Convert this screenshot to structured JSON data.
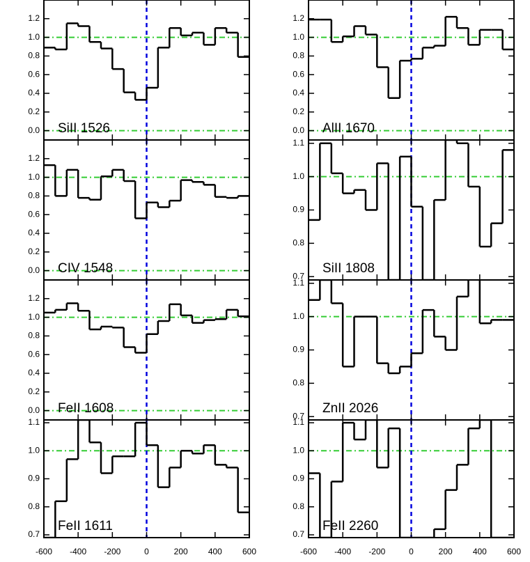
{
  "chart_data": [
    {
      "type": "step",
      "label": "SiII 1526",
      "color": "#000000",
      "xlim": [
        -600,
        600
      ],
      "ylim": [
        -0.1,
        1.4
      ],
      "yticks": [
        {
          "value": 0,
          "label": "0.0"
        },
        0.2,
        0.4,
        0.6,
        0.8,
        {
          "value": 1,
          "label": "1.0"
        },
        1.2
      ],
      "x": [
        -567,
        -500,
        -433,
        -367,
        -300,
        -233,
        -167,
        -100,
        -33,
        33,
        100,
        167,
        233,
        300,
        367,
        433,
        500,
        567
      ],
      "values": [
        0.89,
        0.87,
        1.15,
        1.12,
        0.95,
        0.88,
        0.66,
        0.41,
        0.33,
        0.46,
        0.89,
        1.1,
        1.02,
        1.05,
        0.92,
        1.1,
        1.05,
        0.79
      ],
      "hlines": [
        0,
        1
      ],
      "hline_color": "#33cc33",
      "vlines": [
        0
      ],
      "vline_color": "#0000dd"
    },
    {
      "type": "step",
      "label": "AlII 1670",
      "color": "#000000",
      "xlim": [
        -600,
        600
      ],
      "ylim": [
        -0.1,
        1.4
      ],
      "yticks": [
        {
          "value": 0,
          "label": "0.0"
        },
        0.2,
        0.4,
        0.6,
        0.8,
        {
          "value": 1,
          "label": "1.0"
        },
        1.2
      ],
      "x": [
        -567,
        -500,
        -433,
        -367,
        -300,
        -233,
        -167,
        -100,
        -33,
        33,
        100,
        167,
        233,
        300,
        367,
        433,
        500,
        567
      ],
      "values": [
        1.19,
        1.19,
        0.95,
        1.01,
        1.12,
        1.03,
        0.68,
        0.35,
        0.75,
        0.77,
        0.89,
        0.91,
        1.22,
        1.1,
        0.92,
        1.08,
        1.08,
        0.87
      ],
      "hlines": [
        0,
        1
      ],
      "hline_color": "#33cc33",
      "vlines": [
        0
      ],
      "vline_color": "#0000dd"
    },
    {
      "type": "step",
      "label": "CIV 1548",
      "color": "#000000",
      "xlim": [
        -600,
        600
      ],
      "ylim": [
        -0.1,
        1.4
      ],
      "yticks": [
        {
          "value": 0,
          "label": "0.0"
        },
        0.2,
        0.4,
        0.6,
        0.8,
        {
          "value": 1,
          "label": "1.0"
        },
        1.2
      ],
      "x": [
        -567,
        -500,
        -433,
        -367,
        -300,
        -233,
        -167,
        -100,
        -33,
        33,
        100,
        167,
        233,
        300,
        367,
        433,
        500,
        567
      ],
      "values": [
        1.13,
        0.8,
        1.08,
        0.78,
        0.76,
        1.01,
        1.08,
        0.96,
        0.56,
        0.73,
        0.68,
        0.75,
        0.97,
        0.95,
        0.92,
        0.79,
        0.78,
        0.8
      ],
      "hlines": [
        0,
        1
      ],
      "hline_color": "#33cc33",
      "vlines": [
        0
      ],
      "vline_color": "#0000dd"
    },
    {
      "type": "step",
      "label": "SiII 1808",
      "color": "#000000",
      "xlim": [
        -600,
        600
      ],
      "ylim": [
        0.69,
        1.11
      ],
      "yticks": [
        0.7,
        0.8,
        0.9,
        {
          "value": 1,
          "label": "1.0"
        },
        1.1
      ],
      "x": [
        -567,
        -500,
        -433,
        -367,
        -300,
        -233,
        -167,
        -100,
        -33,
        33,
        100,
        167,
        233,
        300,
        367,
        433,
        500,
        567
      ],
      "values": [
        0.87,
        1.1,
        1.01,
        0.95,
        0.96,
        0.9,
        1.04,
        0.69,
        1.06,
        0.91,
        0.69,
        0.93,
        1.11,
        1.1,
        0.97,
        0.79,
        0.86,
        1.08
      ],
      "hlines": [
        1
      ],
      "hline_color": "#33cc33",
      "vlines": [
        0
      ],
      "vline_color": "#0000dd"
    },
    {
      "type": "step",
      "label": "FeII 1608",
      "color": "#000000",
      "xlim": [
        -600,
        600
      ],
      "ylim": [
        -0.1,
        1.4
      ],
      "yticks": [
        {
          "value": 0,
          "label": "0.0"
        },
        0.2,
        0.4,
        0.6,
        0.8,
        {
          "value": 1,
          "label": "1.0"
        },
        1.2
      ],
      "x": [
        -567,
        -500,
        -433,
        -367,
        -300,
        -233,
        -167,
        -100,
        -33,
        33,
        100,
        167,
        233,
        300,
        367,
        433,
        500,
        567
      ],
      "values": [
        1.05,
        1.08,
        1.15,
        1.07,
        0.87,
        0.9,
        0.89,
        0.68,
        0.62,
        0.82,
        0.96,
        1.14,
        1.02,
        0.94,
        0.97,
        0.98,
        1.08,
        1.01
      ],
      "hlines": [
        0,
        1
      ],
      "hline_color": "#33cc33",
      "vlines": [
        0
      ],
      "vline_color": "#0000dd"
    },
    {
      "type": "step",
      "label": "ZnII 2026",
      "color": "#000000",
      "xlim": [
        -600,
        600
      ],
      "ylim": [
        0.69,
        1.11
      ],
      "yticks": [
        0.7,
        0.8,
        0.9,
        {
          "value": 1,
          "label": "1.0"
        },
        1.1
      ],
      "x": [
        -567,
        -500,
        -433,
        -367,
        -300,
        -233,
        -167,
        -100,
        -33,
        33,
        100,
        167,
        233,
        300,
        367,
        433,
        500,
        567
      ],
      "values": [
        1.05,
        1.11,
        1.04,
        0.85,
        1.0,
        1.0,
        0.86,
        0.83,
        0.85,
        0.89,
        1.02,
        0.94,
        0.9,
        1.06,
        1.12,
        0.98,
        0.99,
        0.99
      ],
      "hlines": [
        1
      ],
      "hline_color": "#33cc33",
      "vlines": [
        0
      ],
      "vline_color": "#0000dd"
    },
    {
      "type": "step",
      "label": "FeII 1611",
      "color": "#000000",
      "xlim": [
        -600,
        600
      ],
      "ylim": [
        0.69,
        1.11
      ],
      "yticks": [
        0.7,
        0.8,
        0.9,
        {
          "value": 1,
          "label": "1.0"
        },
        1.1
      ],
      "xticks": [
        -600,
        -400,
        -200,
        0,
        200,
        400,
        600
      ],
      "x": [
        -567,
        -500,
        -433,
        -367,
        -300,
        -233,
        -167,
        -100,
        -33,
        33,
        100,
        167,
        233,
        300,
        367,
        433,
        500,
        567
      ],
      "values": [
        0.69,
        0.82,
        0.97,
        1.11,
        1.03,
        0.92,
        0.98,
        0.98,
        1.1,
        1.02,
        0.87,
        0.94,
        1.0,
        0.99,
        1.02,
        0.95,
        0.94,
        0.78
      ],
      "hlines": [
        1
      ],
      "hline_color": "#33cc33",
      "vlines": [
        0
      ],
      "vline_color": "#0000dd"
    },
    {
      "type": "step",
      "label": "FeII 2260",
      "color": "#000000",
      "xlim": [
        -600,
        600
      ],
      "ylim": [
        0.69,
        1.11
      ],
      "yticks": [
        0.7,
        0.8,
        0.9,
        {
          "value": 1,
          "label": "1.0"
        },
        1.1
      ],
      "xticks": [
        -600,
        -400,
        -200,
        0,
        200,
        400,
        600
      ],
      "x": [
        -567,
        -500,
        -433,
        -367,
        -300,
        -233,
        -167,
        -100,
        -33,
        33,
        100,
        167,
        233,
        300,
        367,
        433,
        500,
        567
      ],
      "values": [
        0.92,
        0.69,
        0.89,
        1.1,
        1.04,
        1.11,
        0.94,
        1.08,
        0.69,
        0.69,
        0.69,
        0.72,
        0.86,
        0.95,
        1.08,
        1.11,
        0.69,
        0.69
      ],
      "hlines": [
        1
      ],
      "hline_color": "#33cc33",
      "vlines": [
        0
      ],
      "vline_color": "#0000dd"
    }
  ]
}
